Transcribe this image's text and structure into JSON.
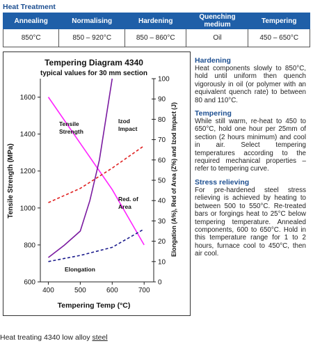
{
  "heat_treatment": {
    "title": "Heat Treatment",
    "headers": [
      "Annealing",
      "Normalising",
      "Hardening",
      "Quenching medium",
      "Tempering"
    ],
    "values": [
      "850°C",
      "850 – 920°C",
      "850 – 860°C",
      "Oil",
      "450 – 650°C"
    ]
  },
  "chart_data": {
    "type": "line",
    "title": "Tempering Diagram 4340",
    "subtitle": "typical values for 30 mm section",
    "xlabel": "Tempering Temp (°C)",
    "ylabel_left": "Tensile Strength (MPa)",
    "ylabel_right": "Elongation (A%), Red of Area (Z%) and Izod Impact (J)",
    "x_ticks": [
      "400",
      "500",
      "600",
      "700"
    ],
    "y_left_ticks": [
      "600",
      "800",
      "1000",
      "1200",
      "1400",
      "1600"
    ],
    "y_right_ticks": [
      "0",
      "10",
      "20",
      "30",
      "40",
      "50",
      "60",
      "70",
      "80",
      "90",
      "100"
    ],
    "xlim": [
      375,
      730
    ],
    "ylim_left": [
      600,
      1700
    ],
    "ylim_right": [
      0,
      100
    ],
    "series": [
      {
        "name": "Tensile Strength",
        "axis": "left",
        "color": "#ff22ff",
        "dash": "solid",
        "x": [
          400,
          500,
          600,
          700
        ],
        "y": [
          1600,
          1350,
          1100,
          800
        ]
      },
      {
        "name": "Izod Impact",
        "axis": "right",
        "color": "#7a1aa0",
        "dash": "solid",
        "x": [
          400,
          450,
          500,
          530,
          560,
          580,
          600
        ],
        "y": [
          12,
          18,
          25,
          40,
          60,
          80,
          100
        ]
      },
      {
        "name": "Red. of Area",
        "axis": "right",
        "color": "#e02020",
        "dash": "dashed",
        "x": [
          400,
          500,
          600,
          700
        ],
        "y": [
          39,
          46,
          56,
          67
        ]
      },
      {
        "name": "Elongation",
        "axis": "right",
        "color": "#1a1a8c",
        "dash": "dashed",
        "x": [
          400,
          500,
          600,
          700
        ],
        "y": [
          10,
          13,
          17,
          26
        ]
      }
    ],
    "labels": {
      "tensile": [
        "Tensile",
        "Strength"
      ],
      "izod": [
        "Izod",
        "Impact"
      ],
      "red": [
        "Red. of",
        "Area"
      ],
      "elong": "Elongation"
    }
  },
  "notes": [
    {
      "heading": "Hardening",
      "text": "Heat components slowly to 850°C, hold until uniform then quench vigorously in oil (or polymer with an equivalent quench rate) to between 80 and 110°C."
    },
    {
      "heading": "Tempering",
      "text": "While still warm, re-heat to 450 to 650°C, hold one hour per 25mm of section (2 hours minimum) and cool in air. Select tempering temperatures according to the required mechanical properties – refer to tempering curve."
    },
    {
      "heading": "Stress relieving",
      "text": "For pre-hardened steel stress relieving is achieved by heating to between 500 to 550°C. Re-treated bars or forgings heat to 25°C below tempering temperature. Annealed components, 600 to 650°C. Hold in this temperature range for 1 to 2 hours, furnace cool to 450°C, then air cool."
    }
  ],
  "caption": {
    "text": "Heat treating 4340 low alloy ",
    "link": "steel"
  }
}
